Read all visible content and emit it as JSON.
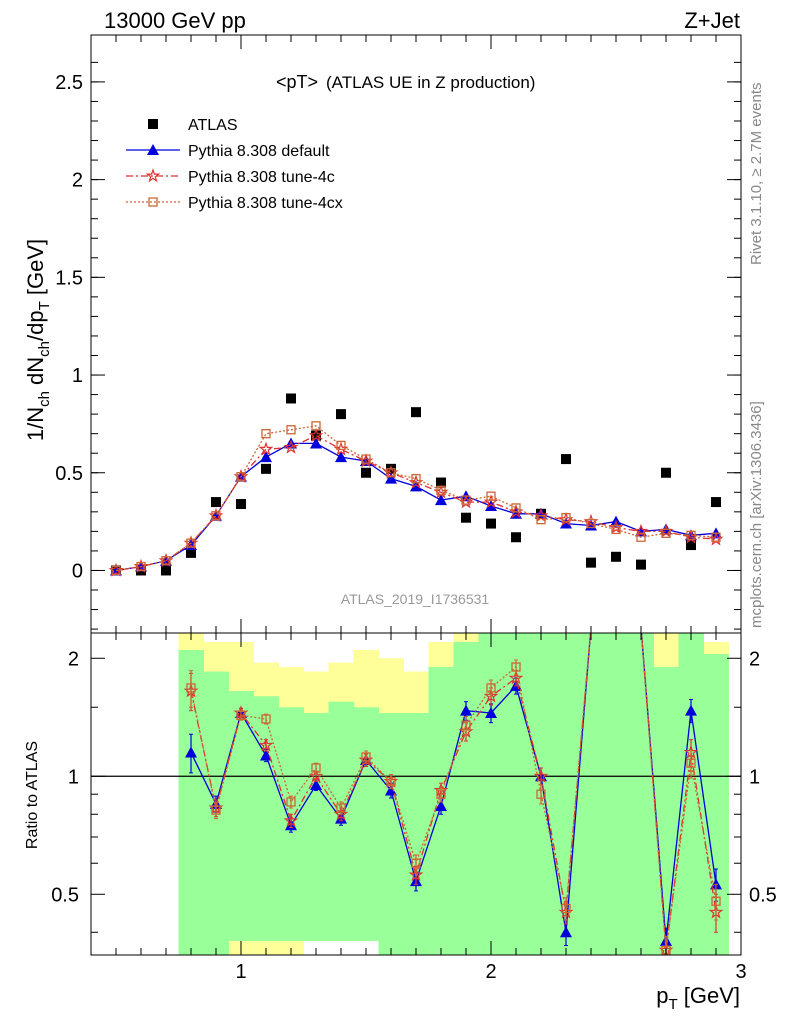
{
  "header": {
    "left": "13000 GeV pp",
    "right": "Z+Jet"
  },
  "side": {
    "rivet": "Rivet 3.1.10, ≥ 2.7M events",
    "mcplots": "mcplots.cern.ch [arXiv:1306.3436]"
  },
  "chart_data": [
    {
      "type": "line",
      "title": "<pT>",
      "subtitle": "(ATLAS UE in Z production)",
      "watermark": "ATLAS_2019_I1736531",
      "xlabel": "p_T [GeV]",
      "ylabel": "1/N_ch dN_ch/dp_T [GeV]",
      "xlim": [
        0.4,
        3.0
      ],
      "ylim": [
        -0.32,
        2.74
      ],
      "x_ticks": [
        1,
        2,
        3
      ],
      "y_ticks": [
        0,
        0.5,
        1,
        1.5,
        2,
        2.5
      ],
      "x_tick_labels": [
        "1",
        "2",
        "3"
      ],
      "y_tick_labels": [
        "0",
        "0.5",
        "1",
        "1.5",
        "2",
        "2.5"
      ],
      "legend_position": "top-left",
      "x": [
        0.5,
        0.6,
        0.7,
        0.8,
        0.9,
        1.0,
        1.1,
        1.2,
        1.3,
        1.4,
        1.5,
        1.6,
        1.7,
        1.8,
        1.9,
        2.0,
        2.1,
        2.2,
        2.3,
        2.4,
        2.5,
        2.6,
        2.7,
        2.8,
        2.9
      ],
      "series": [
        {
          "name": "ATLAS",
          "color": "#000000",
          "marker": "square",
          "line": "none",
          "values": [
            0.0,
            0.0,
            0.0,
            0.09,
            0.35,
            0.34,
            0.52,
            0.88,
            0.69,
            0.8,
            0.5,
            0.52,
            0.81,
            0.45,
            0.27,
            0.24,
            0.17,
            0.29,
            0.57,
            0.04,
            0.07,
            0.03,
            0.5,
            0.13,
            0.35
          ]
        },
        {
          "name": "Pythia 8.308 default",
          "color": "#0000dd",
          "marker": "triangle",
          "line": "solid",
          "values": [
            0.0,
            0.02,
            0.05,
            0.13,
            0.28,
            0.48,
            0.58,
            0.65,
            0.65,
            0.58,
            0.56,
            0.47,
            0.43,
            0.36,
            0.38,
            0.33,
            0.29,
            0.29,
            0.24,
            0.23,
            0.25,
            0.2,
            0.21,
            0.18,
            0.19
          ]
        },
        {
          "name": "Pythia 8.308 tune-4c",
          "color": "#dd3333",
          "marker": "star",
          "line": "dashdot",
          "values": [
            0.0,
            0.02,
            0.05,
            0.14,
            0.28,
            0.48,
            0.62,
            0.63,
            0.69,
            0.62,
            0.56,
            0.5,
            0.45,
            0.4,
            0.35,
            0.35,
            0.3,
            0.28,
            0.26,
            0.25,
            0.22,
            0.2,
            0.2,
            0.17,
            0.16
          ]
        },
        {
          "name": "Pythia 8.308 tune-4cx",
          "color": "#cc6633",
          "marker": "open-square",
          "line": "dotted",
          "values": [
            0.0,
            0.02,
            0.05,
            0.14,
            0.28,
            0.48,
            0.7,
            0.72,
            0.74,
            0.64,
            0.57,
            0.5,
            0.47,
            0.41,
            0.36,
            0.38,
            0.32,
            0.26,
            0.27,
            0.24,
            0.21,
            0.17,
            0.19,
            0.18,
            0.17
          ]
        }
      ]
    },
    {
      "type": "line",
      "ylabel": "Ratio to ATLAS",
      "xlabel": "p_T [GeV]",
      "xlim": [
        0.4,
        3.0
      ],
      "ylim": [
        0.35,
        2.32
      ],
      "log_y": true,
      "reference_line": 1,
      "y_ticks": [
        0.5,
        1,
        2
      ],
      "y_tick_labels": [
        "0.5",
        "1",
        "2"
      ],
      "x_ticks": [
        1,
        2,
        3
      ],
      "x_tick_labels": [
        "1",
        "2",
        "3"
      ],
      "band_colors": {
        "inner": "#99ff99",
        "outer": "#ffff99"
      },
      "band_edges": [
        0.75,
        0.85,
        0.95,
        1.05,
        1.15,
        1.25,
        1.35,
        1.45,
        1.55,
        1.65,
        1.75,
        1.85,
        1.95,
        2.05,
        2.15,
        2.25,
        2.35,
        2.45,
        2.55,
        2.65,
        2.75,
        2.85,
        2.95
      ],
      "band_outer_low": [
        0.35,
        0.35,
        0.35,
        0.35,
        0.35,
        0.65,
        0.64,
        0.67,
        0.35,
        0.35,
        0.35,
        0.35,
        0.35,
        0.35,
        0.35,
        0.35,
        0.35,
        0.35,
        0.35,
        0.35,
        0.35,
        0.35
      ],
      "band_outer_high": [
        2.32,
        2.2,
        2.2,
        1.95,
        1.9,
        1.85,
        1.95,
        2.1,
        2.0,
        1.85,
        2.2,
        2.32,
        2.32,
        2.32,
        2.32,
        2.32,
        2.32,
        2.32,
        2.32,
        2.32,
        2.32,
        2.2
      ],
      "band_inner_low": [
        0.35,
        0.35,
        0.38,
        0.38,
        0.38,
        0.38,
        0.38,
        0.38,
        0.35,
        0.35,
        0.35,
        0.35,
        0.35,
        0.35,
        0.35,
        0.35,
        0.35,
        0.35,
        0.35,
        0.35,
        0.35,
        0.35
      ],
      "band_inner_high": [
        2.1,
        1.85,
        1.65,
        1.6,
        1.5,
        1.45,
        1.55,
        1.5,
        1.45,
        1.45,
        1.9,
        2.2,
        2.32,
        2.32,
        2.32,
        2.32,
        2.32,
        2.32,
        2.32,
        1.9,
        2.32,
        2.05
      ],
      "series": [
        {
          "name": "Pythia 8.308 default",
          "color": "#0000dd",
          "marker": "triangle",
          "line": "solid",
          "values": [
            1.15,
            0.85,
            1.45,
            1.13,
            0.75,
            0.95,
            0.78,
            1.1,
            0.92,
            0.54,
            0.84,
            1.47,
            1.45,
            1.7,
            1.0,
            0.4,
            2.4,
            2.4,
            0.38,
            1.47,
            0.53
          ],
          "errors": [
            0.13,
            0.04,
            0.04,
            0.04,
            0.03,
            0.03,
            0.03,
            0.04,
            0.04,
            0.03,
            0.04,
            0.08,
            0.08,
            0.08,
            0.05,
            0.03,
            0.0,
            0.0,
            0.03,
            0.1,
            0.05
          ]
        },
        {
          "name": "Pythia 8.308 tune-4c",
          "color": "#dd3333",
          "marker": "star",
          "line": "dashdot",
          "values": [
            1.65,
            0.83,
            1.45,
            1.2,
            0.77,
            1.0,
            0.8,
            1.1,
            0.97,
            0.56,
            0.92,
            1.3,
            1.6,
            1.78,
            1.0,
            0.45,
            2.4,
            2.4,
            0.36,
            1.15,
            0.45
          ],
          "errors": [
            0.18,
            0.04,
            0.04,
            0.04,
            0.03,
            0.03,
            0.03,
            0.04,
            0.04,
            0.03,
            0.04,
            0.07,
            0.08,
            0.08,
            0.05,
            0.03,
            0.0,
            0.0,
            0.03,
            0.09,
            0.05
          ]
        },
        {
          "name": "Pythia 8.308 tune-4cx",
          "color": "#cc6633",
          "marker": "open-square",
          "line": "dotted",
          "values": [
            1.68,
            0.82,
            1.43,
            1.4,
            0.86,
            1.05,
            0.83,
            1.12,
            0.97,
            0.6,
            0.9,
            1.35,
            1.68,
            1.9,
            0.9,
            0.46,
            2.4,
            2.4,
            0.36,
            1.08,
            0.48
          ],
          "errors": [
            0.18,
            0.04,
            0.04,
            0.04,
            0.03,
            0.03,
            0.03,
            0.04,
            0.04,
            0.03,
            0.04,
            0.07,
            0.08,
            0.08,
            0.05,
            0.03,
            0.0,
            0.0,
            0.03,
            0.09,
            0.05
          ]
        }
      ],
      "ratio_x": [
        0.8,
        0.9,
        1.0,
        1.1,
        1.2,
        1.3,
        1.4,
        1.5,
        1.6,
        1.7,
        1.8,
        1.9,
        2.0,
        2.1,
        2.2,
        2.3,
        2.4,
        2.6,
        2.7,
        2.8,
        2.9
      ]
    }
  ]
}
